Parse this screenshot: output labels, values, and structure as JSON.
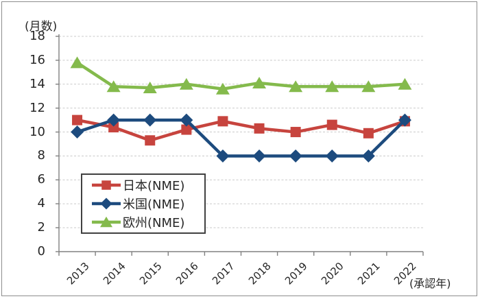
{
  "chart_data": {
    "type": "line",
    "title": "",
    "ylabel": "(月数)",
    "xlabel": "(承認年)",
    "categories": [
      "2013",
      "2014",
      "2015",
      "2016",
      "2017",
      "2018",
      "2019",
      "2020",
      "2021",
      "2022"
    ],
    "series": [
      {
        "key": "japan",
        "name": "日本(NME)",
        "marker": "square",
        "color": "#C7443E",
        "values": [
          11.0,
          10.4,
          9.3,
          10.2,
          10.9,
          10.3,
          10.0,
          10.6,
          9.9,
          10.9
        ]
      },
      {
        "key": "us",
        "name": "米国(NME)",
        "marker": "diamond",
        "color": "#1D4B7E",
        "values": [
          10.0,
          11.0,
          11.0,
          11.0,
          8.0,
          8.0,
          8.0,
          8.0,
          8.0,
          11.0
        ]
      },
      {
        "key": "eu",
        "name": "欧州(NME)",
        "marker": "triangle",
        "color": "#84BA4C",
        "values": [
          15.8,
          13.8,
          13.7,
          14.0,
          13.6,
          14.1,
          13.8,
          13.8,
          13.8,
          14.0
        ]
      }
    ],
    "ylim": [
      0,
      18
    ],
    "ytick_step": 2,
    "yticks": [
      0,
      2,
      4,
      6,
      8,
      10,
      12,
      14,
      16,
      18
    ],
    "grid": "horizontal-dashed",
    "legend_position": "inside-lower-left",
    "styles": {
      "grid_color": "#C9C9C9",
      "axis_color": "#808080",
      "text_color": "#262626",
      "legend_border_color": "#404040",
      "frame_border_color": "#8C8C8C"
    }
  }
}
